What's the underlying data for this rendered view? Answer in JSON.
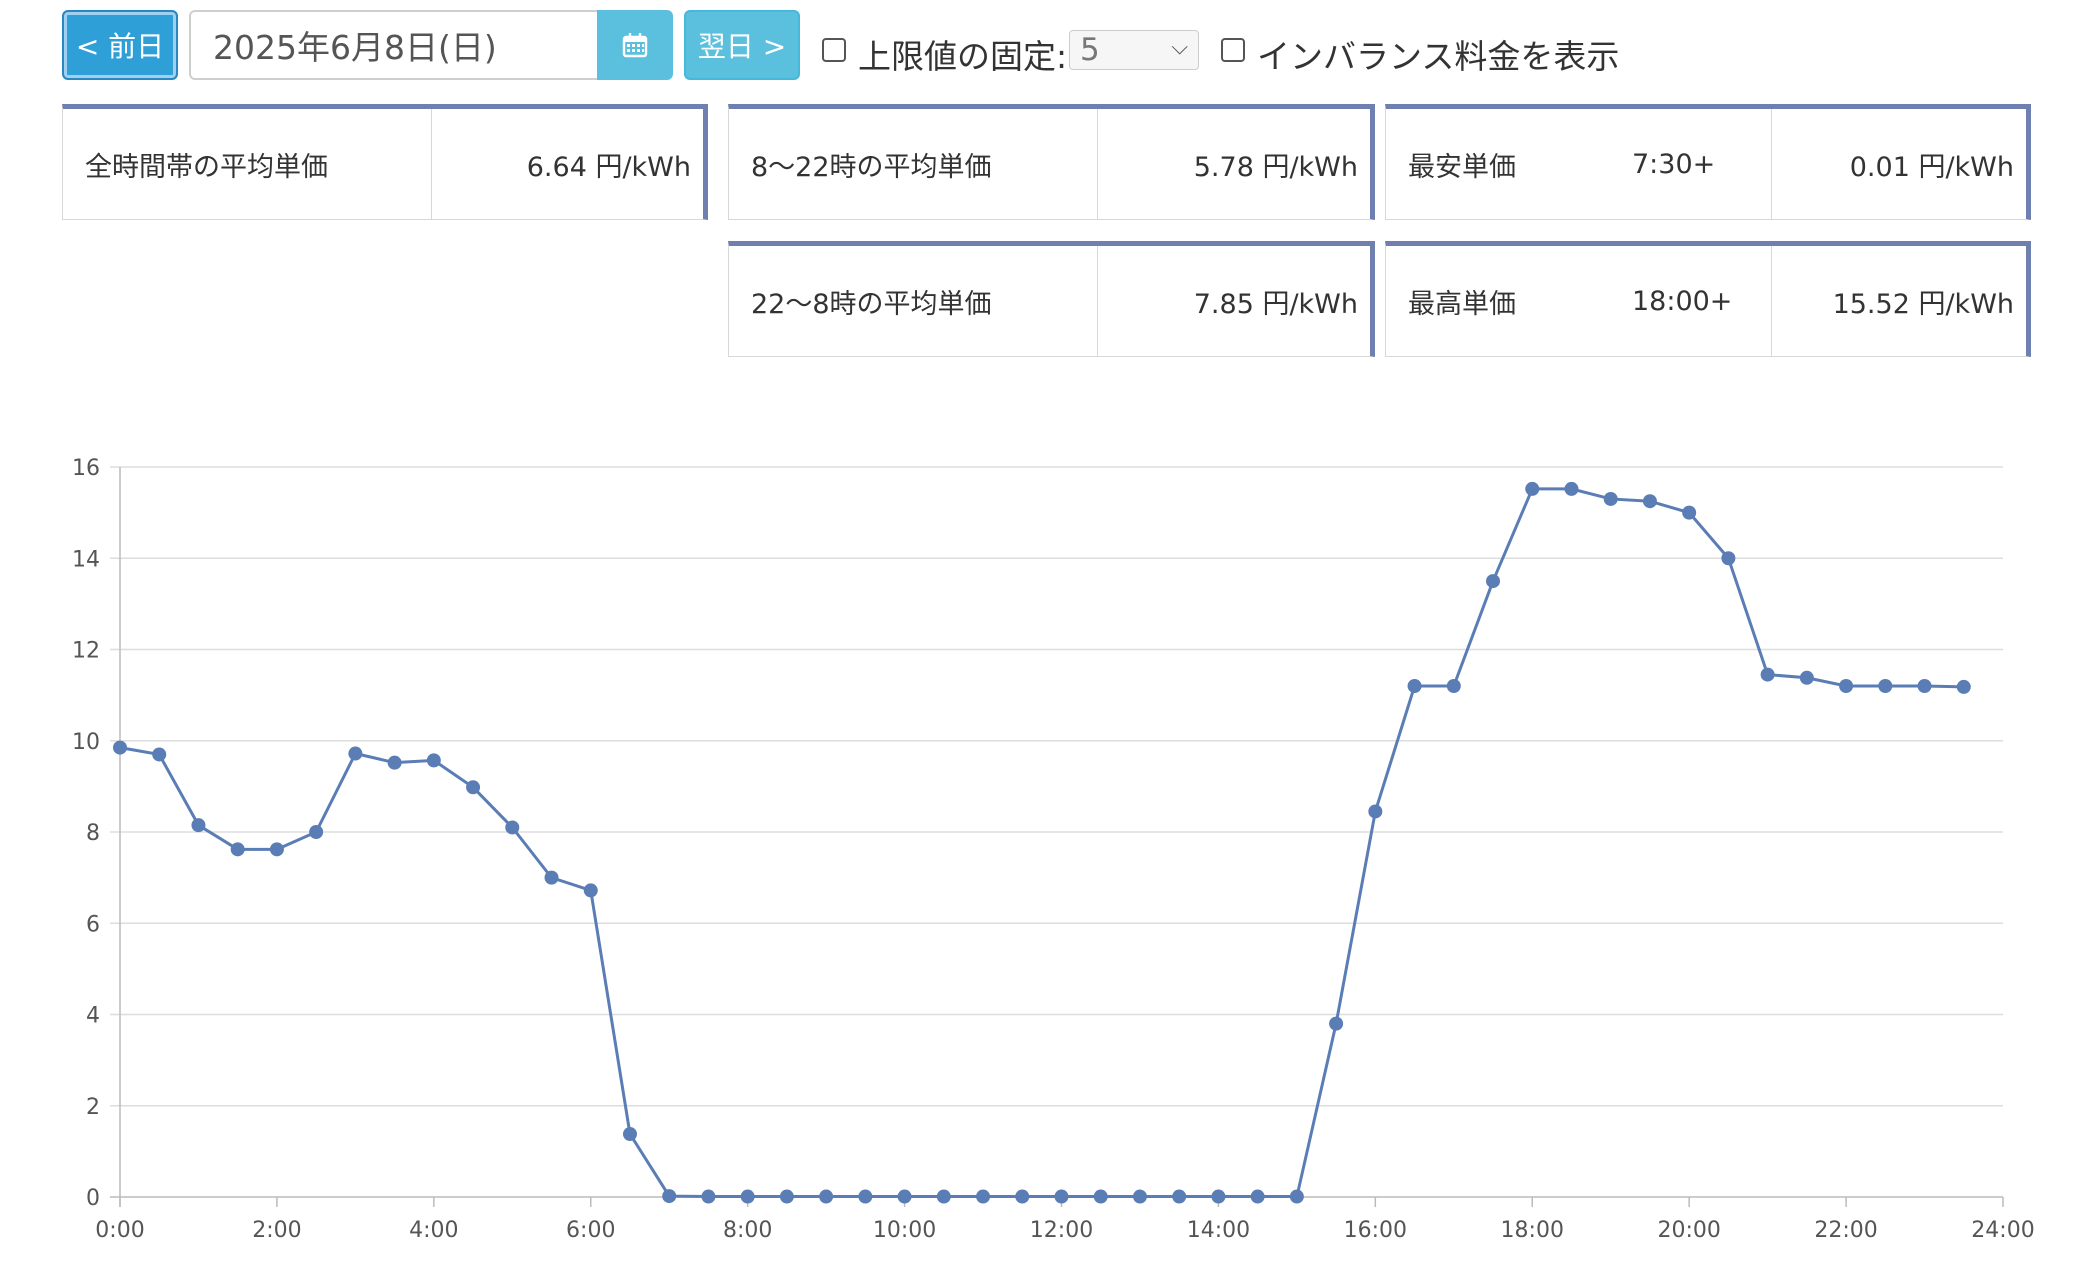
{
  "toolbar": {
    "prev_label": "< 前日",
    "date_value": "2025年6月8日(日)",
    "calendar_icon": "calendar-icon",
    "next_label": "翌日 >",
    "fix_max_label": "上限値の固定:",
    "fix_max_checked": false,
    "fix_max_select_value": "5",
    "imbalance_label": "インバランス料金を表示",
    "imbalance_checked": false
  },
  "stats": {
    "all_avg": {
      "label": "全時間帯の平均単価",
      "value": "6.64 円/kWh"
    },
    "day_avg": {
      "label": "8〜22時の平均単価",
      "value": "5.78 円/kWh"
    },
    "night_avg": {
      "label": "22〜8時の平均単価",
      "value": "7.85 円/kWh"
    },
    "min": {
      "label": "最安単価",
      "time": "7:30+",
      "value": "0.01 円/kWh"
    },
    "max": {
      "label": "最高単価",
      "time": "18:00+",
      "value": "15.52 円/kWh"
    }
  },
  "colors": {
    "accent": "#5a7db5",
    "card_border": "#6f7fb0",
    "grid": "#dddddd"
  },
  "chart_data": {
    "type": "line",
    "x_ticks": [
      "0:00",
      "2:00",
      "4:00",
      "6:00",
      "8:00",
      "10:00",
      "12:00",
      "14:00",
      "16:00",
      "18:00",
      "20:00",
      "22:00",
      "24:00"
    ],
    "y_ticks": [
      "0",
      "2",
      "4",
      "6",
      "8",
      "10",
      "12",
      "14",
      "16"
    ],
    "ylim": [
      0,
      16
    ],
    "xlim_hours": [
      0,
      24
    ],
    "grid": true,
    "series": [
      {
        "x_hours": [
          0,
          0.5,
          1,
          1.5,
          2,
          2.5,
          3,
          3.5,
          4,
          4.5,
          5,
          5.5,
          6,
          6.5,
          7,
          7.5,
          8,
          8.5,
          9,
          9.5,
          10,
          10.5,
          11,
          11.5,
          12,
          12.5,
          13,
          13.5,
          14,
          14.5,
          15,
          15.5,
          16,
          16.5,
          17,
          17.5,
          18,
          18.5,
          19,
          19.5,
          20,
          20.5,
          21,
          21.5,
          22,
          22.5,
          23,
          23.5
        ],
        "values": [
          9.85,
          9.7,
          8.15,
          7.62,
          7.62,
          8.0,
          9.72,
          9.52,
          9.57,
          8.98,
          8.1,
          7.0,
          6.72,
          1.38,
          0.02,
          0.01,
          0.01,
          0.01,
          0.01,
          0.01,
          0.01,
          0.01,
          0.01,
          0.01,
          0.01,
          0.01,
          0.01,
          0.01,
          0.01,
          0.01,
          0.01,
          3.8,
          8.45,
          11.2,
          11.2,
          13.5,
          15.52,
          15.52,
          15.3,
          15.25,
          15.0,
          14.0,
          11.45,
          11.38,
          11.2,
          11.2,
          11.2,
          11.18
        ]
      }
    ]
  }
}
